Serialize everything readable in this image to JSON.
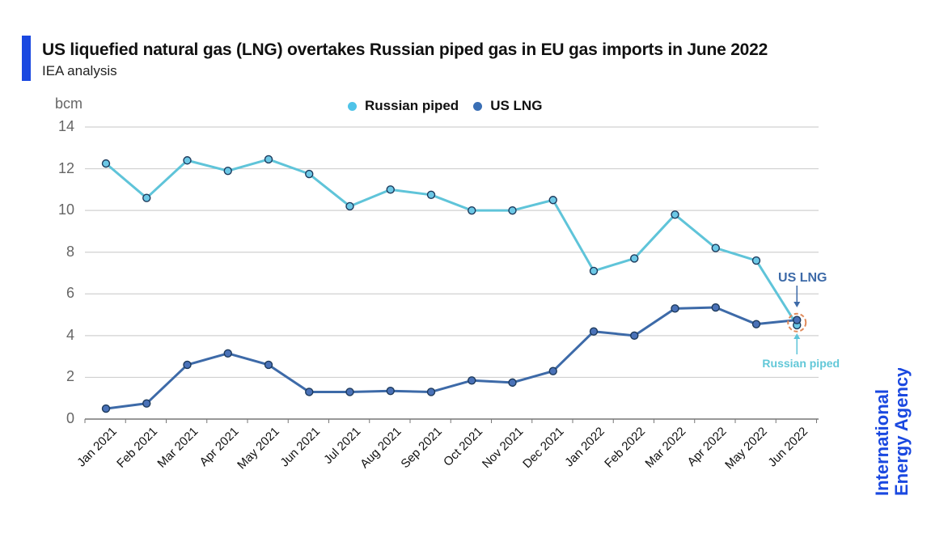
{
  "header": {
    "title": "US liquefied natural gas (LNG) overtakes Russian piped gas in EU gas imports in June 2022",
    "subtitle": "IEA analysis",
    "accent_color": "#1a48e0"
  },
  "legend": [
    {
      "label": "Russian piped",
      "color": "#4fc3e8"
    },
    {
      "label": "US LNG",
      "color": "#3a6fb5"
    }
  ],
  "annotations": {
    "us_lng": "US LNG",
    "russian_piped": "Russian piped"
  },
  "logo": {
    "line1": "International",
    "line2": "Energy Agency"
  },
  "chart_data": {
    "type": "line",
    "title": "US liquefied natural gas (LNG) overtakes Russian piped gas in EU gas imports in June 2022",
    "subtitle": "IEA analysis",
    "xlabel": "",
    "ylabel": "bcm",
    "ylim": [
      0,
      14
    ],
    "yticks": [
      0,
      2,
      4,
      6,
      8,
      10,
      12,
      14
    ],
    "grid": true,
    "legend_position": "top",
    "categories": [
      "Jan 2021",
      "Feb 2021",
      "Mar 2021",
      "Apr 2021",
      "May 2021",
      "Jun 2021",
      "Jul 2021",
      "Aug 2021",
      "Sep 2021",
      "Oct 2021",
      "Nov 2021",
      "Dec 2021",
      "Jan 2022",
      "Feb 2022",
      "Mar 2022",
      "Apr 2022",
      "May 2022",
      "Jun 2022"
    ],
    "series": [
      {
        "name": "Russian piped",
        "color": "#4fc3e8",
        "values": [
          12.25,
          10.6,
          12.4,
          11.9,
          12.45,
          11.75,
          10.2,
          11.0,
          10.75,
          10.0,
          10.0,
          10.5,
          7.1,
          7.7,
          9.8,
          8.2,
          7.6,
          4.5
        ]
      },
      {
        "name": "US LNG",
        "color": "#3a6fb5",
        "values": [
          0.5,
          0.75,
          2.6,
          3.15,
          2.6,
          1.3,
          1.3,
          1.35,
          1.3,
          1.85,
          1.75,
          2.3,
          4.2,
          4.0,
          5.3,
          5.35,
          4.55,
          4.75
        ]
      }
    ],
    "annotations": [
      {
        "text": "US LNG",
        "points_to": "Jun 2022 US LNG"
      },
      {
        "text": "Russian piped",
        "points_to": "Jun 2022 Russian piped"
      }
    ]
  }
}
